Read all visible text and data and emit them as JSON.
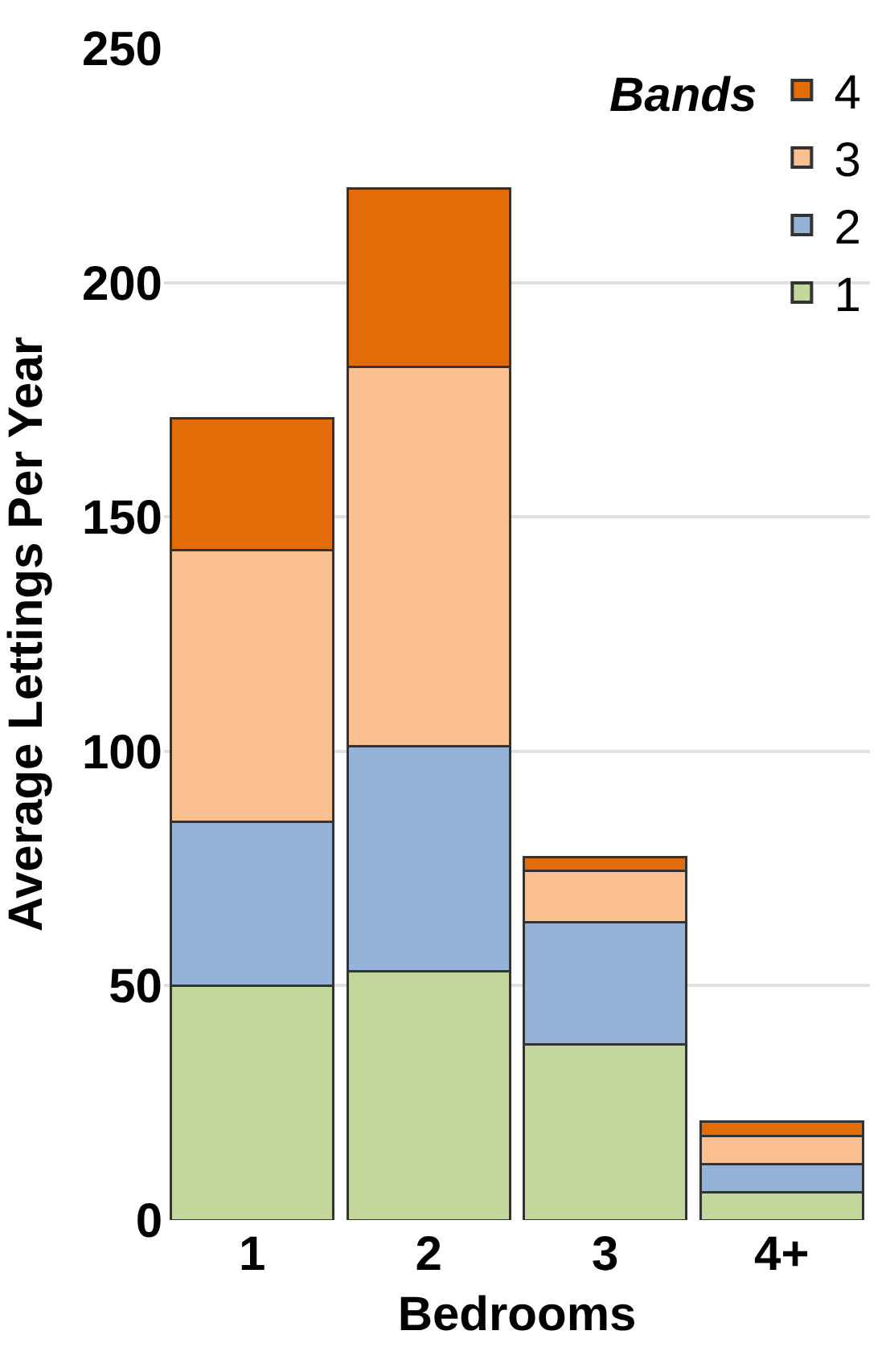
{
  "chart_data": {
    "type": "bar",
    "stacked": true,
    "xlabel": "Bedrooms",
    "ylabel": "Average Lettings Per Year",
    "legend_title": "Bands",
    "categories": [
      "1",
      "2",
      "3",
      "4+"
    ],
    "series": [
      {
        "name": "1",
        "color": "#c3d69b",
        "values": [
          50,
          53,
          37.5,
          6
        ]
      },
      {
        "name": "2",
        "color": "#95b3d7",
        "values": [
          35,
          48,
          26,
          6
        ]
      },
      {
        "name": "3",
        "color": "#fac090",
        "values": [
          58,
          81,
          11,
          6
        ]
      },
      {
        "name": "4",
        "color": "#e36c09",
        "values": [
          28,
          38,
          3,
          3
        ]
      }
    ],
    "ylim": [
      0,
      250
    ],
    "yticks": [
      0,
      50,
      100,
      150,
      200,
      250
    ],
    "grid": "y",
    "legend": "top right"
  }
}
